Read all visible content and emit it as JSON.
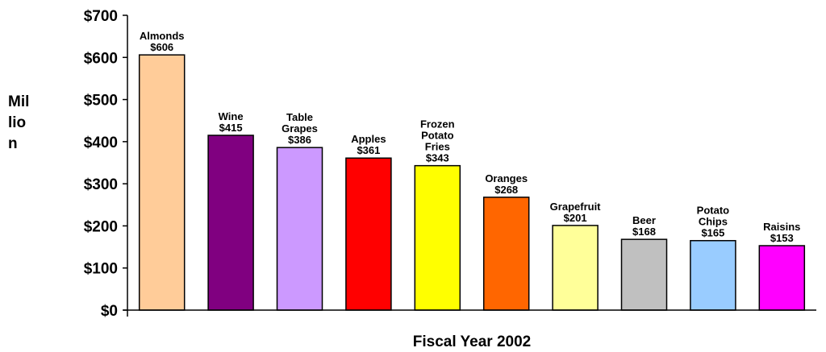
{
  "chart_data": {
    "type": "bar",
    "title": "",
    "xlabel": "Fiscal Year 2002",
    "ylabel_lines": [
      "Mil",
      "lio",
      "n"
    ],
    "ylim": [
      0,
      700
    ],
    "ytick_labels": [
      "$0",
      "$100",
      "$200",
      "$300",
      "$400",
      "$500",
      "$600",
      "$700"
    ],
    "grid": false,
    "categories": [
      {
        "label_lines": [
          "Almonds"
        ],
        "value": 606,
        "value_label": "$606",
        "color": "#ffcc99"
      },
      {
        "label_lines": [
          "Wine"
        ],
        "value": 415,
        "value_label": "$415",
        "color": "#800080"
      },
      {
        "label_lines": [
          "Table",
          "Grapes"
        ],
        "value": 386,
        "value_label": "$386",
        "color": "#cc99ff"
      },
      {
        "label_lines": [
          "Apples"
        ],
        "value": 361,
        "value_label": "$361",
        "color": "#ff0000"
      },
      {
        "label_lines": [
          "Frozen",
          "Potato",
          "Fries"
        ],
        "value": 343,
        "value_label": "$343",
        "color": "#ffff00"
      },
      {
        "label_lines": [
          "Oranges"
        ],
        "value": 268,
        "value_label": "$268",
        "color": "#ff6600"
      },
      {
        "label_lines": [
          "Grapefruit"
        ],
        "value": 201,
        "value_label": "$201",
        "color": "#ffff99"
      },
      {
        "label_lines": [
          "Beer"
        ],
        "value": 168,
        "value_label": "$168",
        "color": "#c0c0c0"
      },
      {
        "label_lines": [
          "Potato",
          "Chips"
        ],
        "value": 165,
        "value_label": "$165",
        "color": "#99ccff"
      },
      {
        "label_lines": [
          "Raisins"
        ],
        "value": 153,
        "value_label": "$153",
        "color": "#ff00ff"
      }
    ]
  }
}
